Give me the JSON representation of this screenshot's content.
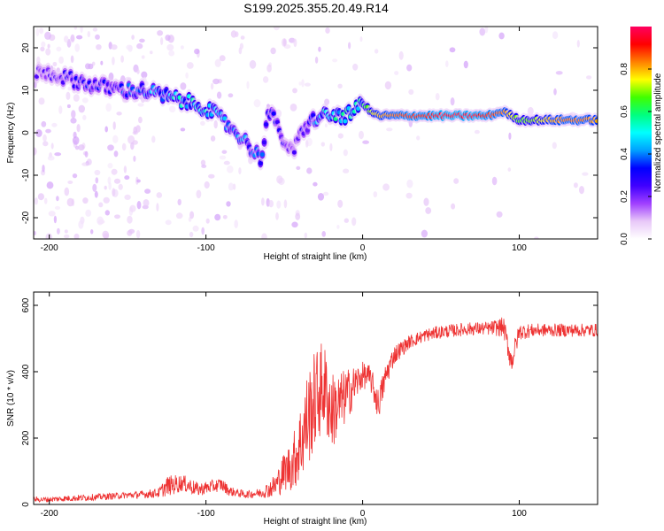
{
  "figure_title": "S199.2025.355.20.49.R14",
  "chart_data": [
    {
      "type": "heatmap",
      "title": "S199.2025.355.20.49.R14",
      "xlabel": "Height of straight line (km)",
      "ylabel": "Frequency (Hz)",
      "xlim": [
        -210,
        150
      ],
      "ylim": [
        -25,
        25
      ],
      "xticks": [
        -200,
        -100,
        0,
        100
      ],
      "yticks": [
        -20,
        -10,
        0,
        10,
        20
      ],
      "colorbar": {
        "label": "Normalized spectral amplitude",
        "range": [
          0.0,
          1.0
        ],
        "ticks": [
          0.0,
          0.2,
          0.4,
          0.6,
          0.8
        ],
        "colormap": [
          "#ffffff",
          "#e8c8f8",
          "#a040ff",
          "#4000ff",
          "#0000ff",
          "#00a0ff",
          "#00ffff",
          "#00ff80",
          "#40ff00",
          "#ffff00",
          "#ff8000",
          "#ff0000",
          "#ff0060"
        ]
      },
      "ridge": {
        "x": [
          -200,
          -190,
          -180,
          -170,
          -160,
          -150,
          -140,
          -130,
          -120,
          -110,
          -100,
          -90,
          -80,
          -75,
          -70,
          -65,
          -60,
          -55,
          -50,
          -45,
          -40,
          -35,
          -30,
          -25,
          -20,
          -15,
          -10,
          -5,
          0,
          5,
          10,
          20,
          30,
          40,
          50,
          60,
          70,
          80,
          90,
          95,
          100,
          110,
          120,
          130,
          140,
          150
        ],
        "freq": [
          14,
          13,
          12,
          11,
          10.5,
          10,
          10,
          9,
          8,
          7,
          6,
          3,
          0,
          -2,
          -4,
          -6,
          5,
          2,
          -2,
          -5,
          -1,
          2,
          3.5,
          4,
          4,
          4,
          4,
          5,
          7,
          5,
          4,
          4,
          4,
          4,
          4,
          4,
          4,
          4,
          5,
          4,
          3,
          3,
          3,
          3,
          3,
          3
        ],
        "amplitude": [
          0.25,
          0.3,
          0.35,
          0.35,
          0.35,
          0.4,
          0.45,
          0.5,
          0.55,
          0.55,
          0.6,
          0.5,
          0.45,
          0.45,
          0.4,
          0.45,
          0.4,
          0.35,
          0.3,
          0.25,
          0.3,
          0.35,
          0.45,
          0.55,
          0.6,
          0.6,
          0.65,
          0.7,
          0.6,
          0.7,
          0.8,
          0.85,
          0.9,
          0.9,
          0.95,
          0.95,
          0.95,
          0.9,
          0.85,
          0.75,
          0.65,
          0.7,
          0.8,
          0.85,
          0.85,
          0.8
        ]
      }
    },
    {
      "type": "line",
      "xlabel": "Height of straight line (km)",
      "ylabel": "SNR (10 * v/v)",
      "xlim": [
        -210,
        150
      ],
      "ylim": [
        0,
        640
      ],
      "xticks": [
        -200,
        -100,
        0,
        100
      ],
      "yticks": [
        0,
        200,
        400,
        600
      ],
      "line_color": "#ee3333",
      "series": [
        {
          "name": "SNR",
          "x": [
            -210,
            -200,
            -190,
            -180,
            -170,
            -160,
            -150,
            -140,
            -130,
            -125,
            -120,
            -115,
            -110,
            -105,
            -100,
            -95,
            -90,
            -85,
            -80,
            -75,
            -70,
            -65,
            -60,
            -55,
            -50,
            -45,
            -40,
            -35,
            -30,
            -25,
            -20,
            -15,
            -10,
            -5,
            0,
            5,
            10,
            15,
            20,
            25,
            30,
            40,
            50,
            60,
            70,
            80,
            90,
            95,
            100,
            110,
            120,
            130,
            140,
            150
          ],
          "y": [
            15,
            15,
            18,
            20,
            22,
            25,
            28,
            30,
            35,
            55,
            60,
            65,
            55,
            45,
            50,
            55,
            60,
            40,
            35,
            30,
            32,
            35,
            45,
            60,
            100,
            120,
            180,
            260,
            320,
            360,
            280,
            300,
            330,
            360,
            390,
            380,
            300,
            390,
            450,
            470,
            490,
            510,
            520,
            525,
            530,
            530,
            535,
            430,
            520,
            525,
            525,
            525,
            525,
            525
          ],
          "noise_amplitude": [
            8,
            8,
            9,
            10,
            10,
            10,
            10,
            12,
            15,
            30,
            30,
            25,
            25,
            20,
            20,
            20,
            20,
            15,
            12,
            12,
            12,
            15,
            25,
            40,
            60,
            80,
            120,
            150,
            150,
            140,
            120,
            100,
            80,
            60,
            40,
            40,
            50,
            40,
            30,
            25,
            20,
            20,
            20,
            20,
            20,
            20,
            30,
            40,
            25,
            20,
            20,
            20,
            20,
            20
          ]
        }
      ]
    }
  ]
}
